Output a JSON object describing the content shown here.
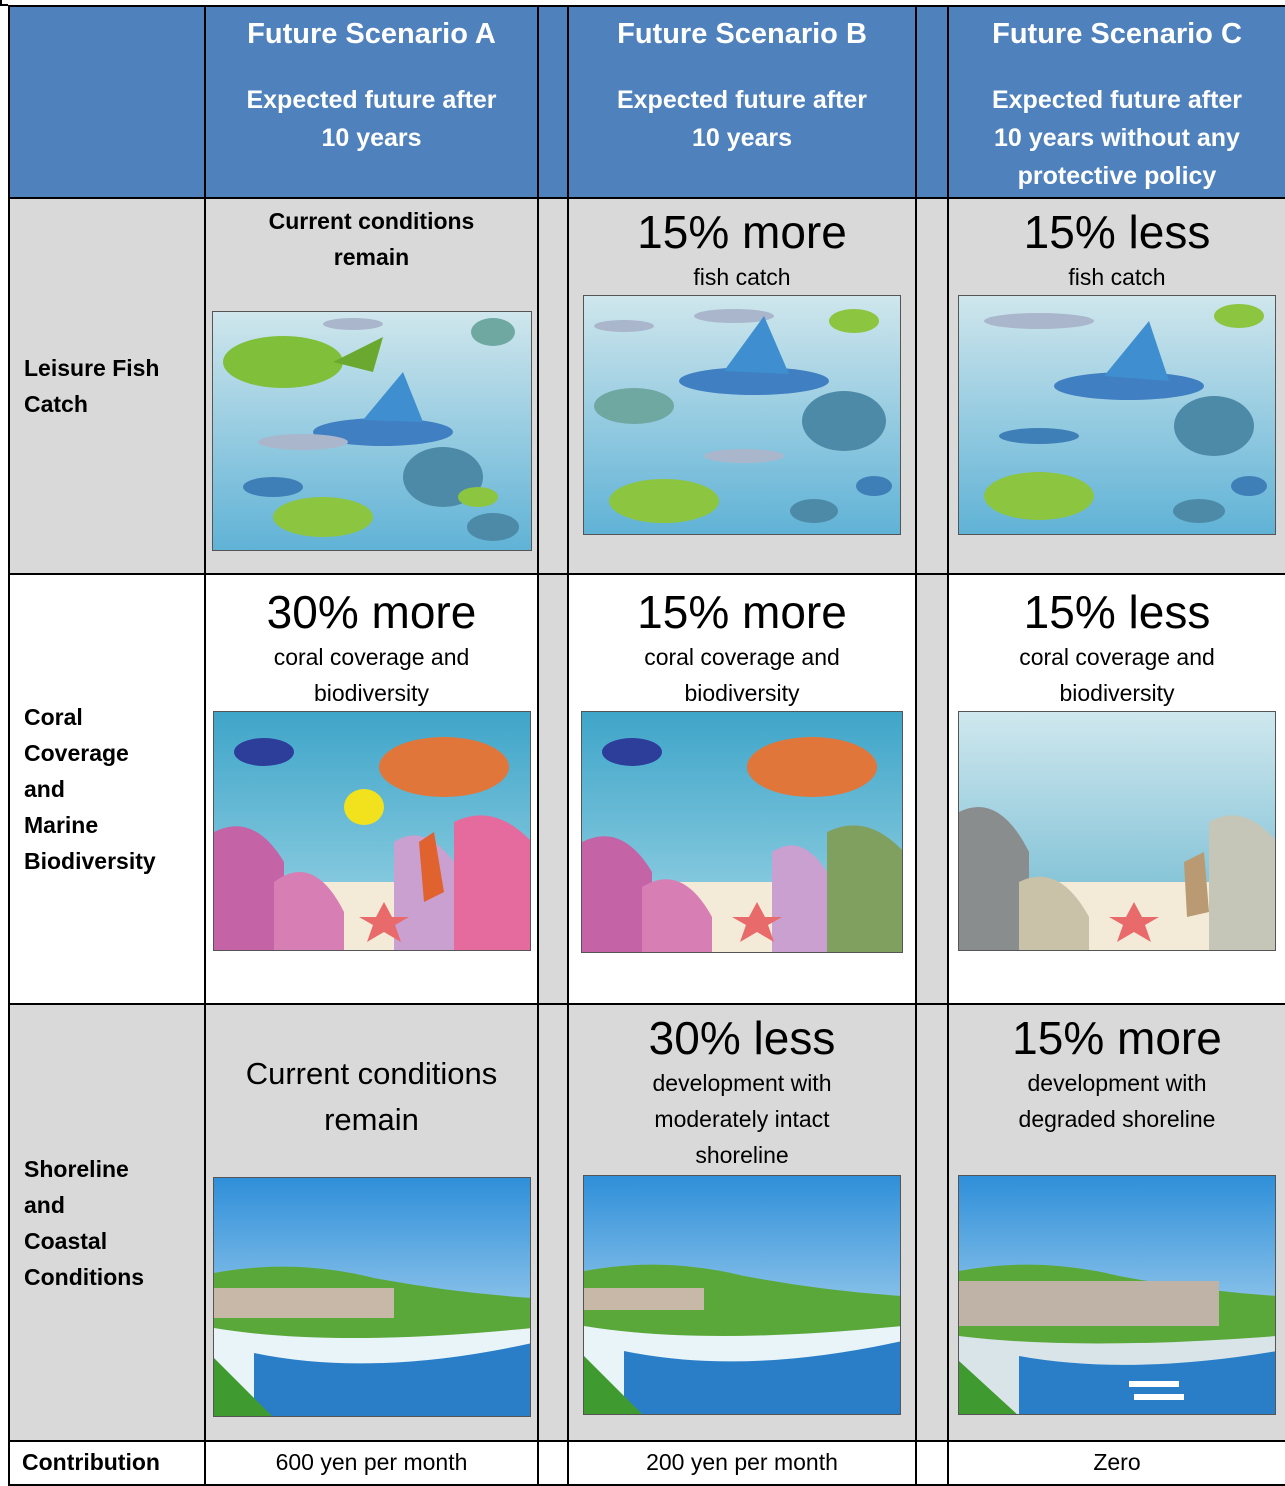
{
  "header": {
    "scenarios": [
      {
        "title": "Future Scenario A",
        "subtitle_line1": "Expected future after",
        "subtitle_line2": "10 years",
        "subtitle_line3": ""
      },
      {
        "title": "Future Scenario B",
        "subtitle_line1": "Expected future after",
        "subtitle_line2": "10 years",
        "subtitle_line3": ""
      },
      {
        "title": "Future Scenario C",
        "subtitle_line1": "Expected future after",
        "subtitle_line2": "10 years without any",
        "subtitle_line3": "protective policy"
      }
    ]
  },
  "rows": {
    "fish": {
      "label_line1": "Leisure Fish",
      "label_line2": "Catch",
      "a": {
        "line1": "Current conditions",
        "line2": "remain"
      },
      "b": {
        "big": "15% more",
        "small": "fish catch"
      },
      "c": {
        "big": "15% less",
        "small": "fish catch"
      }
    },
    "coral": {
      "label_line1": "Coral",
      "label_line2": "Coverage",
      "label_line3": "and",
      "label_line4": "Marine",
      "label_line5": "Biodiversity",
      "a": {
        "big": "30% more",
        "line1": "coral coverage and",
        "line2": "biodiversity"
      },
      "b": {
        "big": "15% more",
        "line1": "coral coverage and",
        "line2": "biodiversity"
      },
      "c": {
        "big": "15% less",
        "line1": "coral coverage and",
        "line2": "biodiversity"
      }
    },
    "shore": {
      "label_line1": "Shoreline",
      "label_line2": "and",
      "label_line3": "Coastal",
      "label_line4": "Conditions",
      "a": {
        "line1": "Current conditions",
        "line2": "remain"
      },
      "b": {
        "big": "30% less",
        "line1": "development with",
        "line2": "moderately intact",
        "line3": "shoreline"
      },
      "c": {
        "big": "15% more",
        "line1": "development with",
        "line2": "degraded shoreline"
      }
    },
    "contribution": {
      "label": "Contribution",
      "a": "600 yen per month",
      "b": "200 yen per month",
      "c": "Zero"
    }
  }
}
